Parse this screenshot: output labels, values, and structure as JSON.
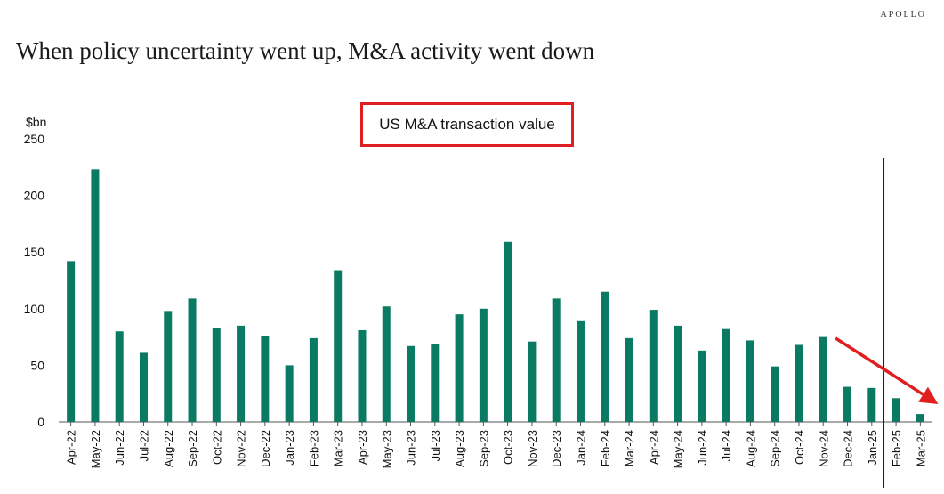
{
  "header": {
    "brand": "APOLLO",
    "title": "When policy uncertainty went up, M&A activity went down"
  },
  "chart_data": {
    "type": "bar",
    "legend_label": "US M&A transaction value",
    "ylabel": "$bn",
    "ylim": [
      0,
      250
    ],
    "yticks": [
      0,
      50,
      100,
      150,
      200,
      250
    ],
    "bar_color": "#0a7a63",
    "annotation_color": "#e02020",
    "categories": [
      "Apr-22",
      "May-22",
      "Jun-22",
      "Jul-22",
      "Aug-22",
      "Sep-22",
      "Oct-22",
      "Nov-22",
      "Dec-22",
      "Jan-23",
      "Feb-23",
      "Mar-23",
      "Apr-23",
      "May-23",
      "Jun-23",
      "Jul-23",
      "Aug-23",
      "Sep-23",
      "Oct-23",
      "Nov-23",
      "Dec-23",
      "Jan-24",
      "Feb-24",
      "Mar-24",
      "Apr-24",
      "May-24",
      "Jun-24",
      "Jul-24",
      "Aug-24",
      "Sep-24",
      "Oct-24",
      "Nov-24",
      "Dec-24",
      "Jan-25",
      "Feb-25",
      "Mar-25"
    ],
    "values": [
      142,
      223,
      80,
      61,
      98,
      109,
      83,
      85,
      76,
      50,
      74,
      134,
      81,
      102,
      67,
      69,
      95,
      100,
      159,
      71,
      109,
      89,
      115,
      74,
      99,
      85,
      63,
      82,
      72,
      49,
      68,
      75,
      31,
      30,
      21,
      7
    ],
    "vertical_line_between": [
      "Jan-25",
      "Feb-25"
    ],
    "trend_arrow": {
      "from": "Nov-24",
      "to": "Mar-25",
      "direction": "down"
    }
  }
}
